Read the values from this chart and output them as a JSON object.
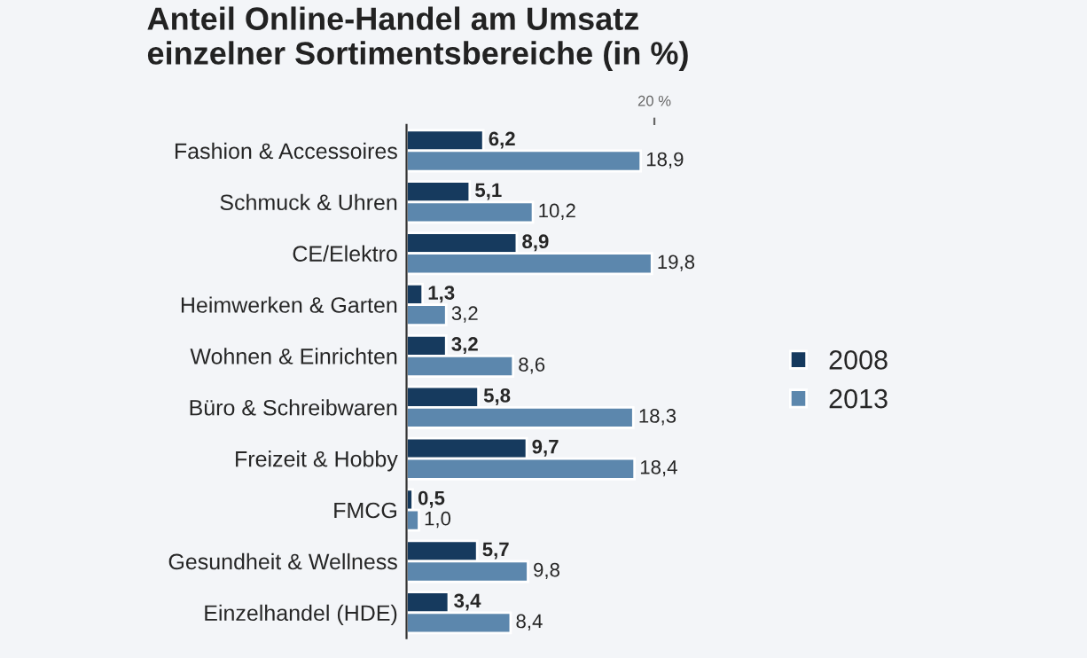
{
  "chart_data": {
    "type": "bar",
    "orientation": "horizontal",
    "title": "Anteil Online-Handel am Umsatz\neinzelner Sortimentsbereiche (in %)",
    "categories": [
      "Fashion & Accessoires",
      "Schmuck & Uhren",
      "CE/Elektro",
      "Heimwerken & Garten",
      "Wohnen & Einrichten",
      "Büro & Schreibwaren",
      "Freizeit & Hobby",
      "FMCG",
      "Gesundheit & Wellness",
      "Einzelhandel (HDE)"
    ],
    "series": [
      {
        "name": "2008",
        "color": "#163a5e",
        "values": [
          6.2,
          5.1,
          8.9,
          1.3,
          3.2,
          5.8,
          9.7,
          0.5,
          5.7,
          3.4
        ],
        "value_labels": [
          "6,2",
          "5,1",
          "8,9",
          "1,3",
          "3,2",
          "5,8",
          "9,7",
          "0,5",
          "5,7",
          "3,4"
        ]
      },
      {
        "name": "2013",
        "color": "#5c87ad",
        "values": [
          18.9,
          10.2,
          19.8,
          3.2,
          8.6,
          18.3,
          18.4,
          1.0,
          9.8,
          8.4
        ],
        "value_labels": [
          "18,9",
          "10,2",
          "19,8",
          "3,2",
          "8,6",
          "18,3",
          "18,4",
          "1,0",
          "9,8",
          "8,4"
        ]
      }
    ],
    "xlim": [
      0,
      20
    ],
    "xticks": [
      {
        "value": 20,
        "label": "20 %"
      }
    ],
    "grid": false,
    "legend": "right"
  }
}
